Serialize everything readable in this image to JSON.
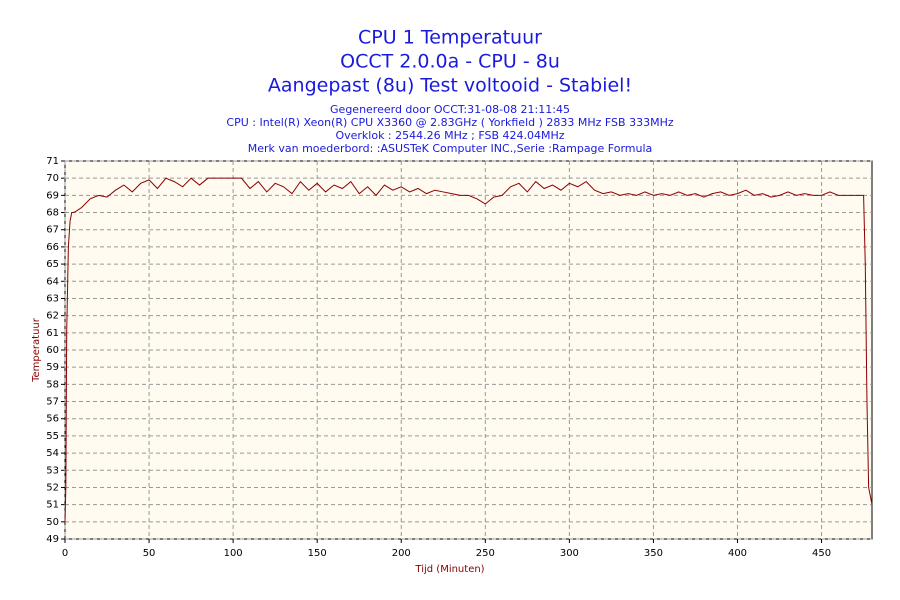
{
  "chart_data": {
    "type": "line",
    "title": [
      "CPU 1 Temperatuur",
      "OCCT 2.0.0a - CPU - 8u",
      "Aangepast (8u) Test voltooid - Stabiel!"
    ],
    "subtitle": [
      "Gegenereerd door OCCT:31-08-08 21:11:45",
      "CPU : Intel(R) Xeon(R) CPU X3360 @ 2.83GHz ( Yorkfield ) 2833 MHz FSB 333MHz",
      "Overklok : 2544.26 MHz ; FSB 424.04MHz",
      "Merk van moederbord: :ASUSTeK Computer INC.,Serie :Rampage Formula"
    ],
    "xlabel": "Tijd (Minuten)",
    "ylabel": "Temperatuur",
    "xlim": [
      0,
      480
    ],
    "ylim": [
      49,
      71
    ],
    "xticks": [
      0,
      50,
      100,
      150,
      200,
      250,
      300,
      350,
      400,
      450
    ],
    "yticks": [
      49,
      50,
      51,
      52,
      53,
      54,
      55,
      56,
      57,
      58,
      59,
      60,
      61,
      62,
      63,
      64,
      65,
      66,
      67,
      68,
      69,
      70,
      71
    ],
    "grid": true,
    "x": [
      0,
      0.5,
      1,
      2,
      3,
      4,
      5,
      7,
      10,
      15,
      20,
      25,
      30,
      35,
      40,
      45,
      50,
      55,
      60,
      65,
      70,
      75,
      80,
      85,
      90,
      95,
      100,
      105,
      110,
      115,
      120,
      125,
      130,
      135,
      140,
      145,
      150,
      155,
      160,
      165,
      170,
      175,
      180,
      185,
      190,
      195,
      200,
      205,
      210,
      215,
      220,
      225,
      230,
      235,
      240,
      245,
      250,
      255,
      260,
      265,
      270,
      275,
      280,
      285,
      290,
      295,
      300,
      305,
      310,
      315,
      320,
      325,
      330,
      335,
      340,
      345,
      350,
      355,
      360,
      365,
      370,
      375,
      380,
      385,
      390,
      395,
      400,
      405,
      410,
      415,
      420,
      425,
      430,
      435,
      440,
      445,
      450,
      455,
      460,
      465,
      470,
      475,
      476,
      477,
      478,
      479,
      480
    ],
    "series": [
      {
        "name": "CPU 1",
        "color": "#8b0000",
        "values": [
          50,
          52,
          61,
          66,
          67.5,
          68,
          68,
          68.1,
          68.3,
          68.8,
          69,
          68.9,
          69.3,
          69.6,
          69.2,
          69.7,
          69.9,
          69.4,
          70,
          69.8,
          69.5,
          70,
          69.6,
          70,
          70,
          70,
          70,
          70,
          69.4,
          69.8,
          69.2,
          69.7,
          69.5,
          69.1,
          69.8,
          69.3,
          69.7,
          69.2,
          69.6,
          69.4,
          69.8,
          69.1,
          69.5,
          69,
          69.6,
          69.3,
          69.5,
          69.2,
          69.4,
          69.1,
          69.3,
          69.2,
          69.1,
          69,
          69,
          68.8,
          68.5,
          68.9,
          69,
          69.5,
          69.7,
          69.2,
          69.8,
          69.4,
          69.6,
          69.3,
          69.7,
          69.5,
          69.8,
          69.3,
          69.1,
          69.2,
          69,
          69.1,
          69,
          69.2,
          69,
          69.1,
          69,
          69.2,
          69,
          69.1,
          68.9,
          69.1,
          69.2,
          69,
          69.1,
          69.3,
          69,
          69.1,
          68.9,
          69,
          69.2,
          69,
          69.1,
          69,
          69,
          69.2,
          69,
          69,
          69,
          69,
          65,
          57,
          52,
          51.5,
          51
        ]
      }
    ]
  }
}
